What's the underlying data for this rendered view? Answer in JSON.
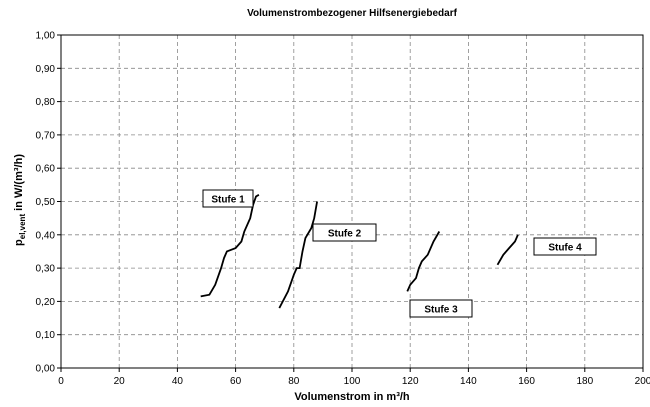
{
  "chart_data": {
    "type": "line",
    "title": "Volumenstrombezogener Hilfsenergiebedarf",
    "xlabel": "Volumenstrom in m³/h",
    "ylabel": [
      "p",
      "el,vent",
      " in W/(m³/h)"
    ],
    "xlim": [
      0,
      200
    ],
    "xticks": [
      0,
      20,
      40,
      60,
      80,
      100,
      120,
      140,
      160,
      180,
      200
    ],
    "ylim": [
      0,
      1
    ],
    "yticks": [
      {
        "value": 0,
        "label": "0,00"
      },
      {
        "value": 0.1,
        "label": "0,10"
      },
      {
        "value": 0.2,
        "label": "0,20"
      },
      {
        "value": 0.3,
        "label": "0,30"
      },
      {
        "value": 0.4,
        "label": "0,40"
      },
      {
        "value": 0.5,
        "label": "0,50"
      },
      {
        "value": 0.6,
        "label": "0,60"
      },
      {
        "value": 0.7,
        "label": "0,70"
      },
      {
        "value": 0.8,
        "label": "0,80"
      },
      {
        "value": 0.9,
        "label": "0,90"
      },
      {
        "value": 1,
        "label": "1,00"
      }
    ],
    "grid": true,
    "series": [
      {
        "name": "Stufe 1",
        "color": "#000000",
        "x": [
          48,
          51,
          53,
          55,
          56,
          57,
          60,
          62,
          63,
          65,
          66,
          67,
          68
        ],
        "values": [
          0.215,
          0.22,
          0.25,
          0.3,
          0.33,
          0.35,
          0.36,
          0.38,
          0.41,
          0.45,
          0.49,
          0.515,
          0.52
        ]
      },
      {
        "name": "Stufe 2",
        "color": "#000000",
        "x": [
          75,
          78,
          80,
          81,
          82,
          83,
          84,
          86,
          87,
          88
        ],
        "values": [
          0.18,
          0.23,
          0.28,
          0.3,
          0.3,
          0.35,
          0.39,
          0.42,
          0.45,
          0.5
        ]
      },
      {
        "name": "Stufe 3",
        "color": "#000000",
        "x": [
          119,
          120,
          122,
          123,
          124,
          126,
          128,
          130
        ],
        "values": [
          0.23,
          0.25,
          0.27,
          0.3,
          0.32,
          0.34,
          0.38,
          0.41
        ]
      },
      {
        "name": "Stufe 4",
        "color": "#000000",
        "x": [
          150,
          152,
          154,
          156,
          157
        ],
        "values": [
          0.31,
          0.34,
          0.36,
          0.38,
          0.4
        ]
      }
    ]
  }
}
